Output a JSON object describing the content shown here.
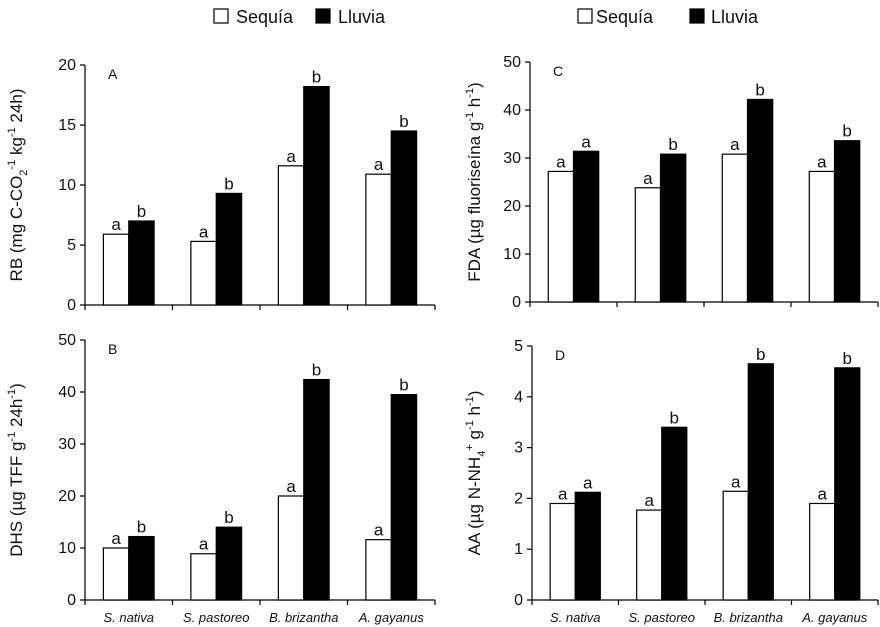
{
  "legend": [
    {
      "label": "Sequía",
      "fill": "#ffffff"
    },
    {
      "label": "Lluvia",
      "fill": "#000000"
    }
  ],
  "chart_data": [
    {
      "type": "bar",
      "panel": "A",
      "ylabel": {
        "pre": "RB (mg C-CO",
        "sub1": "2",
        "mid1": "  kg",
        "sup1": "-1",
        "mid2": " 24h",
        "sup2": "-1",
        "post": ")"
      },
      "ylim": [
        0,
        20
      ],
      "yticks": [
        0,
        5,
        10,
        15,
        20
      ],
      "categories": [
        "S. nativa",
        "S. pastoreo",
        "B. brizantha",
        "A. gayanus"
      ],
      "show_categories": false,
      "series": [
        {
          "name": "Sequía",
          "values": [
            5.9,
            5.3,
            11.6,
            10.9
          ],
          "letters": [
            "a",
            "a",
            "a",
            "a"
          ]
        },
        {
          "name": "Lluvia",
          "values": [
            7.0,
            9.3,
            18.2,
            14.5
          ],
          "letters": [
            "b",
            "b",
            "b",
            "b"
          ]
        }
      ]
    },
    {
      "type": "bar",
      "panel": "C",
      "ylabel": {
        "pre": "FDA (µg fluoriseína g",
        "sup1": "-1",
        "mid1": " h",
        "sup2": "-1",
        "post": ")"
      },
      "ylim": [
        0,
        50
      ],
      "yticks": [
        0,
        10,
        20,
        30,
        40,
        50
      ],
      "categories": [
        "S. nativa",
        "S. pastoreo",
        "B. brizantha",
        "A. gayanus"
      ],
      "show_categories": false,
      "series": [
        {
          "name": "Sequía",
          "values": [
            27.2,
            23.8,
            30.8,
            27.2
          ],
          "letters": [
            "a",
            "a",
            "a",
            "a"
          ]
        },
        {
          "name": "Lluvia",
          "values": [
            31.4,
            30.8,
            42.2,
            33.6
          ],
          "letters": [
            "a",
            "b",
            "b",
            "b"
          ]
        }
      ]
    },
    {
      "type": "bar",
      "panel": "B",
      "ylabel": {
        "pre": "DHS (µg TFF  g",
        "sup1": "-1",
        "mid1": " 24h",
        "sup2": "-1",
        "post": ")"
      },
      "ylim": [
        0,
        50
      ],
      "yticks": [
        0,
        10,
        20,
        30,
        40,
        50
      ],
      "categories": [
        "S. nativa",
        "S. pastoreo",
        "B. brizantha",
        "A. gayanus"
      ],
      "show_categories": true,
      "series": [
        {
          "name": "Sequía",
          "values": [
            10.0,
            8.9,
            20.0,
            11.6
          ],
          "letters": [
            "a",
            "a",
            "a",
            "a"
          ]
        },
        {
          "name": "Lluvia",
          "values": [
            12.2,
            14.0,
            42.4,
            39.5
          ],
          "letters": [
            "b",
            "b",
            "b",
            "b"
          ]
        }
      ]
    },
    {
      "type": "bar",
      "panel": "D",
      "ylabel": {
        "pre": "AA (µg N-NH",
        "sub1": "4",
        "sup1": "+",
        "mid1": " g",
        "sup2": "-1",
        "mid2": " h",
        "sup3": "-1",
        "post": ")"
      },
      "ylim": [
        0,
        5
      ],
      "yticks": [
        0,
        1,
        2,
        3,
        4,
        5
      ],
      "categories": [
        "S. nativa",
        "S. pastoreo",
        "B. brizantha",
        "A. gayanus"
      ],
      "show_categories": true,
      "series": [
        {
          "name": "Sequía",
          "values": [
            1.9,
            1.77,
            2.14,
            1.9
          ],
          "letters": [
            "a",
            "a",
            "a",
            "a"
          ]
        },
        {
          "name": "Lluvia",
          "values": [
            2.12,
            3.4,
            4.65,
            4.57
          ],
          "letters": [
            "a",
            "b",
            "b",
            "b"
          ]
        }
      ]
    }
  ]
}
